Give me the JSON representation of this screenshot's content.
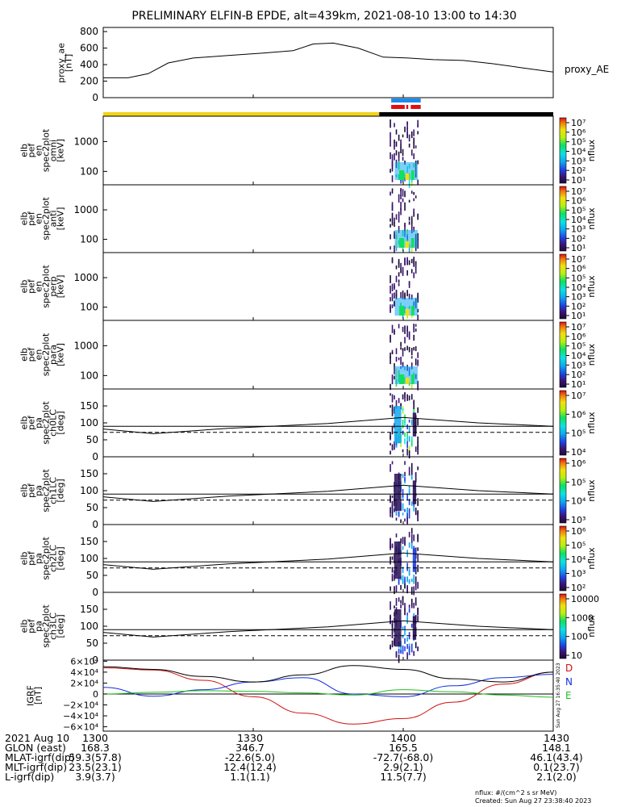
{
  "title": "PRELIMINARY ELFIN-B EPDE, alt=439km, 2021-08-10 13:00 to 14:30",
  "colors": {
    "sunlight": "#f2d21b",
    "shadow": "#000000",
    "science_zone_blue": "#1a8cf0",
    "science_zone_red": "#e01010",
    "D": "#d01010",
    "N": "#1030e0",
    "E": "#20c020"
  },
  "chart_data": [
    {
      "type": "line",
      "id": "proxy_ae",
      "ylabel": "proxy_ae\n[nT]",
      "series_label": "proxy_AE",
      "ylim": [
        0,
        850
      ],
      "yticks": [
        "800",
        "600",
        "400",
        "200",
        "0"
      ],
      "x_minutes": [
        0,
        5,
        9,
        13,
        18,
        25,
        32,
        38,
        42,
        46,
        51,
        56,
        61,
        66,
        72,
        78,
        84,
        90
      ],
      "values": [
        240,
        240,
        290,
        420,
        480,
        510,
        540,
        570,
        650,
        660,
        600,
        490,
        480,
        460,
        450,
        410,
        360,
        310
      ]
    },
    {
      "type": "heatmap",
      "id": "spec_omni",
      "ylabel": "elb\npef\nen\nspec2plot\nomni\n[keV]",
      "yscale": "log",
      "yticks": [
        "1000",
        "100"
      ],
      "colorbar": {
        "label": "nflux",
        "ticks": [
          "10⁷",
          "10⁶",
          "10⁵",
          "10⁴",
          "10³",
          "10²",
          "10¹"
        ]
      }
    },
    {
      "type": "heatmap",
      "id": "spec_anti",
      "ylabel": "elb\npef\nen\nspec2plot\nanti\n[keV]",
      "yscale": "log",
      "yticks": [
        "1000",
        "100"
      ],
      "colorbar": {
        "label": "nflux",
        "ticks": [
          "10⁷",
          "10⁶",
          "10⁵",
          "10⁴",
          "10³",
          "10²",
          "10¹"
        ]
      }
    },
    {
      "type": "heatmap",
      "id": "spec_perp",
      "ylabel": "elb\npef\nen\nspec2plot\nperp\n[keV]",
      "yscale": "log",
      "yticks": [
        "1000",
        "100"
      ],
      "colorbar": {
        "label": "nflux",
        "ticks": [
          "10⁷",
          "10⁶",
          "10⁵",
          "10⁴",
          "10³",
          "10²",
          "10¹"
        ]
      }
    },
    {
      "type": "heatmap",
      "id": "spec_para",
      "ylabel": "elb\npef\nen\nspec2plot\npara\n[keV]",
      "yscale": "log",
      "yticks": [
        "1000",
        "100"
      ],
      "colorbar": {
        "label": "nflux",
        "ticks": [
          "10⁷",
          "10⁶",
          "10⁵",
          "10⁴",
          "10³",
          "10²",
          "10¹"
        ]
      }
    },
    {
      "type": "heatmap",
      "id": "pa_ch0",
      "ylabel": "elb\npef\npa\nspec2plot\nch0LC\n[deg]",
      "ylim": [
        0,
        180
      ],
      "yticks": [
        "150",
        "100",
        "50",
        "0"
      ],
      "colorbar": {
        "label": "nflux",
        "ticks": [
          "10⁷",
          "10⁶",
          "10⁵",
          "10⁴"
        ]
      }
    },
    {
      "type": "heatmap",
      "id": "pa_ch1",
      "ylabel": "elb\npef\npa\nspec2plot\nch1LC\n[deg]",
      "ylim": [
        0,
        180
      ],
      "yticks": [
        "150",
        "100",
        "50",
        "0"
      ],
      "colorbar": {
        "label": "nflux",
        "ticks": [
          "10⁶",
          "10⁵",
          "10⁴",
          "10³"
        ]
      }
    },
    {
      "type": "heatmap",
      "id": "pa_ch2",
      "ylabel": "elb\npef\npa\nspec2plot\nch2LC\n[deg]",
      "ylim": [
        0,
        180
      ],
      "yticks": [
        "150",
        "100",
        "50",
        "0"
      ],
      "colorbar": {
        "label": "nflux",
        "ticks": [
          "10⁶",
          "10⁵",
          "10⁴",
          "10³",
          "10²"
        ]
      }
    },
    {
      "type": "heatmap",
      "id": "pa_ch3",
      "ylabel": "elb\npef\npa\nspec2plot\nch3LC\n[deg]",
      "ylim": [
        0,
        180
      ],
      "yticks": [
        "150",
        "100",
        "50",
        "0"
      ],
      "colorbar": {
        "label": "nflux",
        "ticks": [
          "10000",
          "1000",
          "100",
          "10"
        ]
      }
    },
    {
      "type": "line",
      "id": "igrf",
      "ylabel": "IGRF\n[nT]",
      "ylim": [
        -68000,
        62000
      ],
      "yticks": [
        "6×10⁴",
        "4×10⁴",
        "2×10⁴",
        "0",
        "−2×10⁴",
        "−4×10⁴",
        "−6×10⁴"
      ],
      "x_minutes": [
        0,
        10,
        20,
        30,
        40,
        50,
        60,
        70,
        80,
        90
      ],
      "series": [
        {
          "name": "D",
          "values": [
            48000,
            44000,
            25000,
            -5000,
            -35000,
            -55000,
            -45000,
            -15000,
            18000,
            40000
          ]
        },
        {
          "name": "N",
          "values": [
            12000,
            -4000,
            8000,
            22000,
            30000,
            0,
            -5000,
            15000,
            30000,
            36000
          ]
        },
        {
          "name": "E",
          "values": [
            0,
            3000,
            6000,
            5000,
            2000,
            -2000,
            8000,
            4000,
            -2000,
            -6000
          ]
        },
        {
          "name": "",
          "values": [
            50000,
            45000,
            32000,
            22000,
            35000,
            52000,
            45000,
            28000,
            22000,
            40000
          ]
        }
      ],
      "side_note": "Sun Aug 27 16:35:40 2023"
    }
  ],
  "x_axis": {
    "ticks": [
      "1300",
      "1330",
      "1400",
      "1430"
    ],
    "tick_minutes": [
      0,
      30,
      60,
      90
    ],
    "rows": [
      {
        "label": "2021 Aug 10",
        "values": [
          "1300",
          "1330",
          "1400",
          "1430"
        ]
      },
      {
        "label": "GLON (east)",
        "values": [
          "168.3",
          "346.7",
          "165.5",
          "148.1"
        ]
      },
      {
        "label": "MLAT-igrf(dip)",
        "values": [
          "59.3(57.8)",
          "-22.6(5.0)",
          "-72.7(-68.0)",
          "46.1(43.4)"
        ]
      },
      {
        "label": "MLT-igrf(dip)",
        "values": [
          "23.5(23.1)",
          "12.4(12.4)",
          "2.9(2.1)",
          "0.1(23.7)"
        ]
      },
      {
        "label": "L-igrf(dip)",
        "values": [
          "3.9(3.7)",
          "1.1(1.1)",
          "11.5(7.7)",
          "2.1(2.0)"
        ]
      }
    ]
  },
  "footer": {
    "units": "nflux: #/(cm^2 s sr MeV)",
    "created": "Created: Sun Aug 27 23:38:40 2023"
  }
}
